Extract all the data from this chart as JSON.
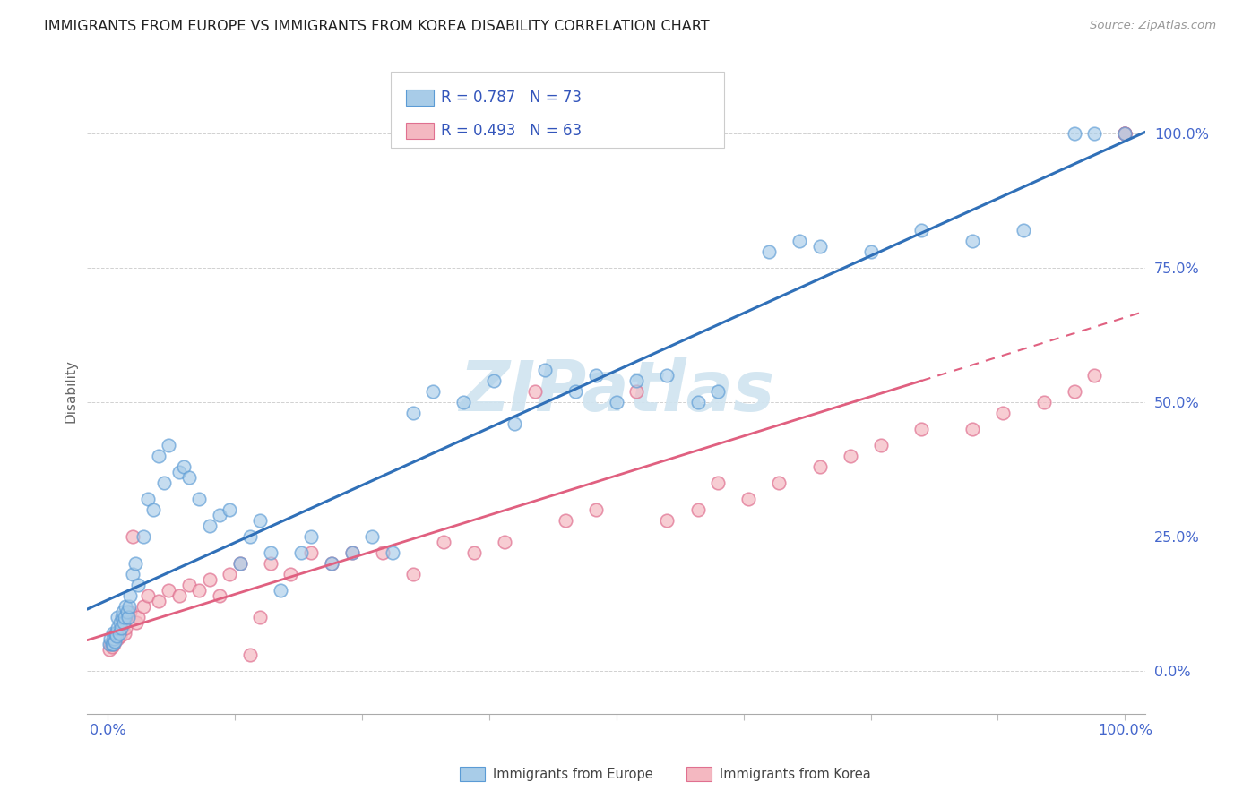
{
  "title": "IMMIGRANTS FROM EUROPE VS IMMIGRANTS FROM KOREA DISABILITY CORRELATION CHART",
  "source": "Source: ZipAtlas.com",
  "ylabel": "Disability",
  "ytick_values": [
    0,
    25,
    50,
    75,
    100
  ],
  "europe_color": "#a8cce8",
  "europe_edge": "#5b9bd5",
  "korea_color": "#f4b8c1",
  "korea_edge": "#e07090",
  "europe_line_color": "#3070b8",
  "korea_line_color": "#e06080",
  "legend_text_color": "#3355bb",
  "axis_text_color": "#4466cc",
  "watermark_color": "#d0e4f0",
  "watermark": "ZIPatlas",
  "europe_R": "R = 0.787",
  "europe_N": "N = 73",
  "korea_R": "R = 0.493",
  "korea_N": "N = 63",
  "eu_x": [
    0.2,
    0.3,
    0.4,
    0.5,
    0.5,
    0.6,
    0.7,
    0.8,
    0.9,
    1.0,
    1.0,
    1.1,
    1.2,
    1.3,
    1.4,
    1.5,
    1.6,
    1.7,
    1.8,
    1.9,
    2.0,
    2.1,
    2.2,
    2.5,
    2.7,
    3.0,
    3.5,
    4.0,
    4.5,
    5.0,
    5.5,
    6.0,
    7.0,
    7.5,
    8.0,
    9.0,
    10.0,
    11.0,
    12.0,
    13.0,
    14.0,
    15.0,
    16.0,
    17.0,
    19.0,
    20.0,
    22.0,
    24.0,
    26.0,
    28.0,
    30.0,
    32.0,
    35.0,
    38.0,
    40.0,
    43.0,
    46.0,
    48.0,
    50.0,
    52.0,
    55.0,
    58.0,
    60.0,
    65.0,
    68.0,
    70.0,
    75.0,
    80.0,
    85.0,
    90.0,
    95.0,
    97.0,
    100.0
  ],
  "eu_y": [
    5.0,
    6.0,
    5.0,
    7.0,
    5.0,
    6.0,
    5.5,
    7.0,
    6.5,
    8.0,
    10.0,
    7.0,
    9.0,
    8.0,
    10.0,
    11.0,
    9.0,
    10.0,
    12.0,
    11.0,
    10.0,
    12.0,
    14.0,
    18.0,
    20.0,
    16.0,
    25.0,
    32.0,
    30.0,
    40.0,
    35.0,
    42.0,
    37.0,
    38.0,
    36.0,
    32.0,
    27.0,
    29.0,
    30.0,
    20.0,
    25.0,
    28.0,
    22.0,
    15.0,
    22.0,
    25.0,
    20.0,
    22.0,
    25.0,
    22.0,
    48.0,
    52.0,
    50.0,
    54.0,
    46.0,
    56.0,
    52.0,
    55.0,
    50.0,
    54.0,
    55.0,
    50.0,
    52.0,
    78.0,
    80.0,
    79.0,
    78.0,
    82.0,
    80.0,
    82.0,
    100.0,
    100.0,
    100.0
  ],
  "ko_x": [
    0.2,
    0.3,
    0.4,
    0.5,
    0.6,
    0.7,
    0.8,
    1.0,
    1.1,
    1.2,
    1.4,
    1.5,
    1.7,
    1.8,
    2.0,
    2.2,
    2.5,
    2.8,
    3.0,
    3.5,
    4.0,
    5.0,
    6.0,
    7.0,
    8.0,
    9.0,
    10.0,
    11.0,
    12.0,
    13.0,
    14.0,
    15.0,
    16.0,
    18.0,
    20.0,
    22.0,
    24.0,
    27.0,
    30.0,
    33.0,
    36.0,
    39.0,
    42.0,
    45.0,
    48.0,
    52.0,
    55.0,
    58.0,
    60.0,
    63.0,
    66.0,
    70.0,
    73.0,
    76.0,
    80.0,
    85.0,
    88.0,
    92.0,
    95.0,
    97.0,
    100.0,
    100.0,
    100.0
  ],
  "ko_y": [
    4.0,
    5.0,
    4.5,
    5.5,
    5.0,
    6.0,
    7.0,
    6.0,
    7.0,
    6.5,
    8.0,
    9.0,
    7.0,
    8.0,
    10.0,
    11.0,
    25.0,
    9.0,
    10.0,
    12.0,
    14.0,
    13.0,
    15.0,
    14.0,
    16.0,
    15.0,
    17.0,
    14.0,
    18.0,
    20.0,
    3.0,
    10.0,
    20.0,
    18.0,
    22.0,
    20.0,
    22.0,
    22.0,
    18.0,
    24.0,
    22.0,
    24.0,
    52.0,
    28.0,
    30.0,
    52.0,
    28.0,
    30.0,
    35.0,
    32.0,
    35.0,
    38.0,
    40.0,
    42.0,
    45.0,
    45.0,
    48.0,
    50.0,
    52.0,
    55.0,
    100.0,
    100.0,
    100.0
  ]
}
